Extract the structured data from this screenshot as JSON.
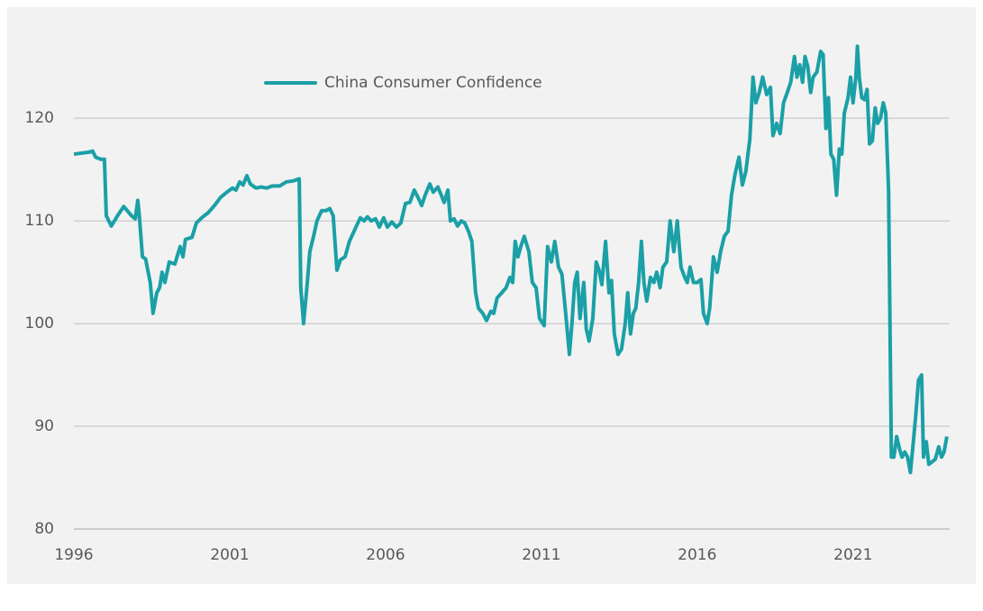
{
  "chart_data": {
    "type": "line",
    "x": [
      1996.0,
      1996.5,
      1996.6,
      1996.7,
      1996.87,
      1996.98,
      1997.04,
      1997.2,
      1997.4,
      1997.6,
      1997.85,
      1997.97,
      1998.05,
      1998.1,
      1998.2,
      1998.3,
      1998.45,
      1998.54,
      1998.66,
      1998.75,
      1998.83,
      1998.92,
      1999.06,
      1999.24,
      1999.41,
      1999.5,
      1999.58,
      1999.79,
      1999.93,
      2000.1,
      2000.31,
      2000.51,
      2000.71,
      2000.91,
      2001.09,
      2001.2,
      2001.32,
      2001.43,
      2001.55,
      2001.66,
      2001.84,
      2002.01,
      2002.19,
      2002.36,
      2002.6,
      2002.82,
      2003.05,
      2003.23,
      2003.28,
      2003.37,
      2003.49,
      2003.57,
      2003.69,
      2003.8,
      2003.95,
      2004.09,
      2004.21,
      2004.32,
      2004.44,
      2004.55,
      2004.7,
      2004.84,
      2005.02,
      2005.19,
      2005.31,
      2005.42,
      2005.54,
      2005.68,
      2005.8,
      2005.94,
      2006.06,
      2006.2,
      2006.35,
      2006.49,
      2006.64,
      2006.78,
      2006.92,
      2007.04,
      2007.16,
      2007.27,
      2007.42,
      2007.53,
      2007.68,
      2007.79,
      2007.88,
      2008.0,
      2008.08,
      2008.2,
      2008.31,
      2008.43,
      2008.54,
      2008.66,
      2008.77,
      2008.89,
      2008.98,
      2009.12,
      2009.24,
      2009.38,
      2009.47,
      2009.58,
      2009.73,
      2009.87,
      2009.99,
      2010.08,
      2010.16,
      2010.25,
      2010.34,
      2010.45,
      2010.6,
      2010.71,
      2010.83,
      2010.94,
      2011.09,
      2011.2,
      2011.32,
      2011.43,
      2011.55,
      2011.66,
      2011.78,
      2011.9,
      2011.98,
      2012.07,
      2012.15,
      2012.24,
      2012.36,
      2012.44,
      2012.53,
      2012.65,
      2012.76,
      2012.85,
      2012.94,
      2013.06,
      2013.17,
      2013.25,
      2013.34,
      2013.46,
      2013.57,
      2013.69,
      2013.77,
      2013.86,
      2013.95,
      2014.03,
      2014.12,
      2014.21,
      2014.29,
      2014.38,
      2014.5,
      2014.61,
      2014.7,
      2014.81,
      2014.9,
      2015.02,
      2015.13,
      2015.25,
      2015.36,
      2015.48,
      2015.6,
      2015.68,
      2015.77,
      2015.88,
      2016.0,
      2016.12,
      2016.2,
      2016.32,
      2016.4,
      2016.52,
      2016.64,
      2016.75,
      2016.87,
      2016.99,
      2017.1,
      2017.21,
      2017.34,
      2017.45,
      2017.56,
      2017.69,
      2017.79,
      2017.88,
      2017.99,
      2018.1,
      2018.23,
      2018.35,
      2018.43,
      2018.55,
      2018.66,
      2018.77,
      2018.89,
      2019.0,
      2019.12,
      2019.2,
      2019.29,
      2019.38,
      2019.46,
      2019.55,
      2019.64,
      2019.72,
      2019.84,
      2019.96,
      2020.04,
      2020.13,
      2020.21,
      2020.29,
      2020.38,
      2020.47,
      2020.56,
      2020.64,
      2020.72,
      2020.84,
      2020.92,
      2021.0,
      2021.09,
      2021.14,
      2021.2,
      2021.28,
      2021.37,
      2021.45,
      2021.53,
      2021.62,
      2021.71,
      2021.79,
      2021.88,
      2021.97,
      2022.05,
      2022.14,
      2022.23,
      2022.31,
      2022.4,
      2022.49,
      2022.57,
      2022.66,
      2022.75,
      2022.84,
      2022.92,
      2023.01,
      2023.1,
      2023.2,
      2023.26,
      2023.35,
      2023.43,
      2023.52,
      2023.64,
      2023.75,
      2023.84,
      2023.92,
      2024.01
    ],
    "series": [
      {
        "name": "China Consumer Confidence",
        "color": "#1aa0a6",
        "values": [
          116.5,
          116.7,
          116.8,
          116.2,
          116.0,
          116.0,
          110.5,
          109.5,
          110.5,
          111.4,
          110.5,
          110.2,
          112.0,
          110.5,
          106.5,
          106.3,
          104.0,
          101.0,
          103.0,
          103.5,
          105.0,
          104.0,
          106.0,
          105.8,
          107.5,
          106.5,
          108.2,
          108.4,
          109.8,
          110.3,
          110.8,
          111.5,
          112.3,
          112.8,
          113.2,
          113.0,
          113.8,
          113.5,
          114.4,
          113.6,
          113.2,
          113.3,
          113.2,
          113.4,
          113.4,
          113.8,
          113.9,
          114.1,
          103.5,
          100.0,
          104.0,
          107.0,
          108.5,
          110.0,
          111.0,
          111.0,
          111.2,
          110.5,
          105.2,
          106.2,
          106.5,
          108.0,
          109.2,
          110.3,
          110.0,
          110.4,
          110.0,
          110.2,
          109.4,
          110.3,
          109.4,
          109.9,
          109.4,
          109.8,
          111.7,
          111.8,
          113.0,
          112.3,
          111.5,
          112.5,
          113.6,
          112.8,
          113.3,
          112.5,
          111.8,
          113.0,
          110.0,
          110.2,
          109.5,
          110.0,
          109.8,
          109.0,
          108.0,
          103.0,
          101.5,
          101.0,
          100.3,
          101.2,
          101.0,
          102.5,
          103.0,
          103.5,
          104.5,
          104.0,
          108.0,
          106.5,
          107.5,
          108.5,
          107.0,
          104.0,
          103.5,
          100.5,
          99.8,
          107.5,
          106.0,
          108.0,
          105.5,
          104.8,
          101.0,
          97.0,
          100.0,
          104.0,
          105.0,
          100.5,
          104.0,
          99.5,
          98.3,
          100.5,
          106.0,
          105.2,
          103.8,
          108.0,
          103.0,
          104.2,
          99.0,
          97.0,
          97.5,
          100.0,
          103.0,
          99.0,
          101.0,
          101.5,
          104.0,
          108.0,
          104.0,
          102.2,
          104.5,
          104.0,
          105.0,
          103.5,
          105.5,
          106.0,
          110.0,
          107.0,
          110.0,
          105.5,
          104.5,
          104.0,
          105.5,
          104.0,
          104.0,
          104.3,
          101.0,
          100.0,
          101.5,
          106.5,
          105.0,
          107.0,
          108.5,
          109.0,
          112.5,
          114.5,
          116.2,
          113.5,
          114.8,
          118.0,
          124.0,
          121.5,
          122.5,
          124.0,
          122.3,
          123.0,
          118.3,
          119.5,
          118.5,
          121.5,
          122.5,
          123.5,
          126.0,
          124.0,
          125.2,
          123.5,
          126.0,
          125.0,
          122.5,
          124.0,
          124.5,
          126.5,
          126.2,
          119.0,
          122.0,
          116.5,
          116.0,
          112.5,
          117.0,
          116.5,
          120.5,
          122.0,
          124.0,
          121.5,
          124.0,
          127.0,
          124.0,
          122.0,
          121.8,
          122.8,
          117.5,
          117.8,
          121.0,
          119.5,
          120.0,
          121.5,
          120.5,
          113.0,
          87.0,
          87.0,
          89.0,
          87.8,
          87.0,
          87.5,
          87.0,
          85.5,
          88.0,
          91.0,
          94.5,
          95.0,
          87.0,
          88.5,
          86.3,
          86.5,
          86.8,
          88.0,
          87.0,
          87.5,
          89.0
        ]
      }
    ],
    "xlim": [
      1996,
      2024.1
    ],
    "xticks": [
      1996,
      2001,
      2006,
      2011,
      2016,
      2021
    ],
    "ylim": [
      80,
      128
    ],
    "yticks": [
      80,
      90,
      100,
      110,
      120
    ],
    "grid": true,
    "legend": "upper left"
  }
}
